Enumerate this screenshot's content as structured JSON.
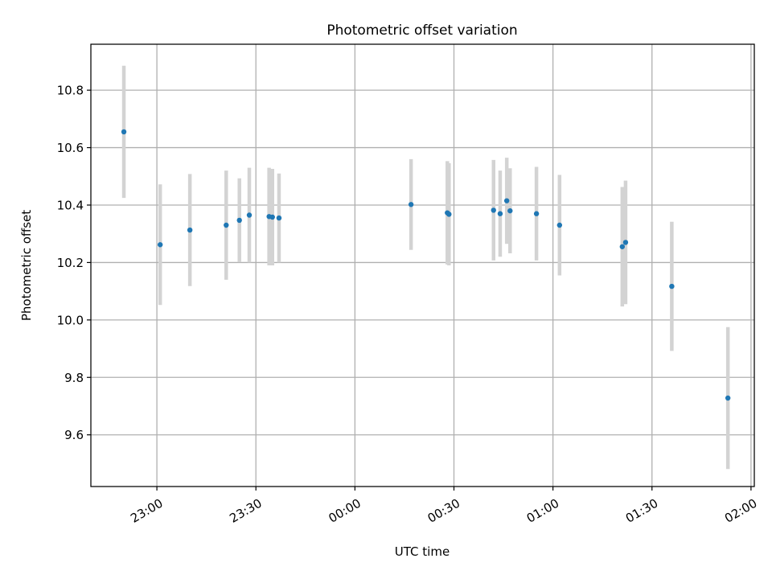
{
  "chart_data": {
    "type": "scatter",
    "title": "Photometric offset variation",
    "xlabel": "UTC time",
    "ylabel": "Photometric offset",
    "x_is_time": true,
    "x_tick_labels": [
      "23:00",
      "23:30",
      "00:00",
      "00:30",
      "01:00",
      "01:30",
      "02:00"
    ],
    "y_tick_labels": [
      "9.6",
      "9.8",
      "10.0",
      "10.2",
      "10.4",
      "10.6",
      "10.8"
    ],
    "xlim": [
      "22:40",
      "02:01"
    ],
    "ylim": [
      9.42,
      10.96
    ],
    "grid": true,
    "colors": {
      "marker": "#1f77b4",
      "errorbar": "#d3d3d3",
      "grid": "#b0b0b0"
    },
    "points": [
      {
        "x": "22:50",
        "y": 10.655,
        "err": 0.23
      },
      {
        "x": "23:01",
        "y": 10.262,
        "err": 0.21
      },
      {
        "x": "23:10",
        "y": 10.313,
        "err": 0.195
      },
      {
        "x": "23:21",
        "y": 10.33,
        "err": 0.19
      },
      {
        "x": "23:25",
        "y": 10.347,
        "err": 0.146
      },
      {
        "x": "23:28",
        "y": 10.365,
        "err": 0.165
      },
      {
        "x": "23:34",
        "y": 10.36,
        "err": 0.17
      },
      {
        "x": "23:35",
        "y": 10.358,
        "err": 0.168
      },
      {
        "x": "23:37",
        "y": 10.355,
        "err": 0.155
      },
      {
        "x": "00:17",
        "y": 10.402,
        "err": 0.158
      },
      {
        "x": "00:28",
        "y": 10.373,
        "err": 0.18
      },
      {
        "x": "00:28.5",
        "y": 10.368,
        "err": 0.178
      },
      {
        "x": "00:42",
        "y": 10.382,
        "err": 0.175
      },
      {
        "x": "00:44",
        "y": 10.37,
        "err": 0.15
      },
      {
        "x": "00:46",
        "y": 10.415,
        "err": 0.15
      },
      {
        "x": "00:47",
        "y": 10.38,
        "err": 0.148
      },
      {
        "x": "00:55",
        "y": 10.37,
        "err": 0.163
      },
      {
        "x": "01:02",
        "y": 10.33,
        "err": 0.175
      },
      {
        "x": "01:21",
        "y": 10.255,
        "err": 0.208
      },
      {
        "x": "01:22",
        "y": 10.27,
        "err": 0.215
      },
      {
        "x": "01:36",
        "y": 10.117,
        "err": 0.225
      },
      {
        "x": "01:53",
        "y": 9.728,
        "err": 0.247
      }
    ]
  }
}
